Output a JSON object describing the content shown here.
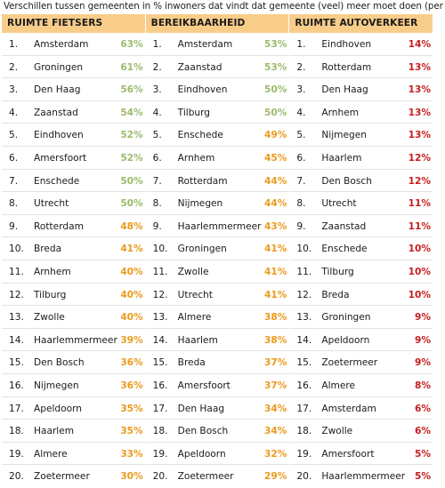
{
  "caption": "Verschillen tussen gemeenten in % inwoners dat vindt dat gemeente (veel) meer moet doen (per thema)",
  "colors": {
    "header_bg": "#f8cd8a",
    "green": "#9cbb6a",
    "orange": "#eb9a1c",
    "red": "#c61e1e"
  },
  "columns": [
    {
      "title": "RUIMTE FIETSERS",
      "rows": [
        {
          "rank": "1.",
          "city": "Amsterdam",
          "pct": "63%",
          "color": "green"
        },
        {
          "rank": "2.",
          "city": "Groningen",
          "pct": "61%",
          "color": "green"
        },
        {
          "rank": "3.",
          "city": "Den Haag",
          "pct": "56%",
          "color": "green"
        },
        {
          "rank": "4.",
          "city": "Zaanstad",
          "pct": "54%",
          "color": "green"
        },
        {
          "rank": "5.",
          "city": "Eindhoven",
          "pct": "52%",
          "color": "green"
        },
        {
          "rank": "6.",
          "city": "Amersfoort",
          "pct": "52%",
          "color": "green"
        },
        {
          "rank": "7.",
          "city": "Enschede",
          "pct": "50%",
          "color": "green"
        },
        {
          "rank": "8.",
          "city": "Utrecht",
          "pct": "50%",
          "color": "green"
        },
        {
          "rank": "9.",
          "city": "Rotterdam",
          "pct": "48%",
          "color": "orange"
        },
        {
          "rank": "10.",
          "city": "Breda",
          "pct": "41%",
          "color": "orange"
        },
        {
          "rank": "11.",
          "city": "Arnhem",
          "pct": "40%",
          "color": "orange"
        },
        {
          "rank": "12.",
          "city": "Tilburg",
          "pct": "40%",
          "color": "orange"
        },
        {
          "rank": "13.",
          "city": "Zwolle",
          "pct": "40%",
          "color": "orange"
        },
        {
          "rank": "14.",
          "city": "Haarlemmermeer",
          "pct": "39%",
          "color": "orange"
        },
        {
          "rank": "15.",
          "city": "Den Bosch",
          "pct": "36%",
          "color": "orange"
        },
        {
          "rank": "16.",
          "city": "Nijmegen",
          "pct": "36%",
          "color": "orange"
        },
        {
          "rank": "17.",
          "city": "Apeldoorn",
          "pct": "35%",
          "color": "orange"
        },
        {
          "rank": "18.",
          "city": "Haarlem",
          "pct": "35%",
          "color": "orange"
        },
        {
          "rank": "19.",
          "city": "Almere",
          "pct": "33%",
          "color": "orange"
        },
        {
          "rank": "20.",
          "city": "Zoetermeer",
          "pct": "30%",
          "color": "orange"
        }
      ]
    },
    {
      "title": "BEREIKBAARHEID",
      "rows": [
        {
          "rank": "1.",
          "city": "Amsterdam",
          "pct": "53%",
          "color": "green"
        },
        {
          "rank": "2.",
          "city": "Zaanstad",
          "pct": "53%",
          "color": "green"
        },
        {
          "rank": "3.",
          "city": "Eindhoven",
          "pct": "50%",
          "color": "green"
        },
        {
          "rank": "4.",
          "city": "Tilburg",
          "pct": "50%",
          "color": "green"
        },
        {
          "rank": "5.",
          "city": "Enschede",
          "pct": "49%",
          "color": "orange"
        },
        {
          "rank": "6.",
          "city": "Arnhem",
          "pct": "45%",
          "color": "orange"
        },
        {
          "rank": "7.",
          "city": "Rotterdam",
          "pct": "44%",
          "color": "orange"
        },
        {
          "rank": "8.",
          "city": "Nijmegen",
          "pct": "44%",
          "color": "orange"
        },
        {
          "rank": "9.",
          "city": "Haarlemmermeer",
          "pct": "43%",
          "color": "orange"
        },
        {
          "rank": "10.",
          "city": "Groningen",
          "pct": "41%",
          "color": "orange"
        },
        {
          "rank": "11.",
          "city": "Zwolle",
          "pct": "41%",
          "color": "orange"
        },
        {
          "rank": "12.",
          "city": "Utrecht",
          "pct": "41%",
          "color": "orange"
        },
        {
          "rank": "13.",
          "city": "Almere",
          "pct": "38%",
          "color": "orange"
        },
        {
          "rank": "14.",
          "city": "Haarlem",
          "pct": "38%",
          "color": "orange"
        },
        {
          "rank": "15.",
          "city": "Breda",
          "pct": "37%",
          "color": "orange"
        },
        {
          "rank": "16.",
          "city": "Amersfoort",
          "pct": "37%",
          "color": "orange"
        },
        {
          "rank": "17.",
          "city": "Den Haag",
          "pct": "34%",
          "color": "orange"
        },
        {
          "rank": "18.",
          "city": "Den Bosch",
          "pct": "34%",
          "color": "orange"
        },
        {
          "rank": "19.",
          "city": "Apeldoorn",
          "pct": "32%",
          "color": "orange"
        },
        {
          "rank": "20.",
          "city": "Zoetermeer",
          "pct": "29%",
          "color": "orange"
        }
      ]
    },
    {
      "title": "RUIMTE AUTOVERKEER",
      "rows": [
        {
          "rank": "1.",
          "city": "Eindhoven",
          "pct": "14%",
          "color": "red"
        },
        {
          "rank": "2.",
          "city": "Rotterdam",
          "pct": "13%",
          "color": "red"
        },
        {
          "rank": "3.",
          "city": "Den Haag",
          "pct": "13%",
          "color": "red"
        },
        {
          "rank": "4.",
          "city": "Arnhem",
          "pct": "13%",
          "color": "red"
        },
        {
          "rank": "5.",
          "city": "Nijmegen",
          "pct": "13%",
          "color": "red"
        },
        {
          "rank": "6.",
          "city": "Haarlem",
          "pct": "12%",
          "color": "red"
        },
        {
          "rank": "7.",
          "city": "Den Bosch",
          "pct": "12%",
          "color": "red"
        },
        {
          "rank": "8.",
          "city": "Utrecht",
          "pct": "11%",
          "color": "red"
        },
        {
          "rank": "9.",
          "city": "Zaanstad",
          "pct": "11%",
          "color": "red"
        },
        {
          "rank": "10.",
          "city": "Enschede",
          "pct": "10%",
          "color": "red"
        },
        {
          "rank": "11.",
          "city": "Tilburg",
          "pct": "10%",
          "color": "red"
        },
        {
          "rank": "12.",
          "city": "Breda",
          "pct": "10%",
          "color": "red"
        },
        {
          "rank": "13.",
          "city": "Groningen",
          "pct": "9%",
          "color": "red"
        },
        {
          "rank": "14.",
          "city": "Apeldoorn",
          "pct": "9%",
          "color": "red"
        },
        {
          "rank": "15.",
          "city": "Zoetermeer",
          "pct": "9%",
          "color": "red"
        },
        {
          "rank": "16.",
          "city": "Almere",
          "pct": "8%",
          "color": "red"
        },
        {
          "rank": "17.",
          "city": "Amsterdam",
          "pct": "6%",
          "color": "red"
        },
        {
          "rank": "18.",
          "city": "Zwolle",
          "pct": "6%",
          "color": "red"
        },
        {
          "rank": "19.",
          "city": "Amersfoort",
          "pct": "5%",
          "color": "red"
        },
        {
          "rank": "20.",
          "city": "Haarlemmermeer",
          "pct": "5%",
          "color": "red"
        }
      ]
    }
  ]
}
